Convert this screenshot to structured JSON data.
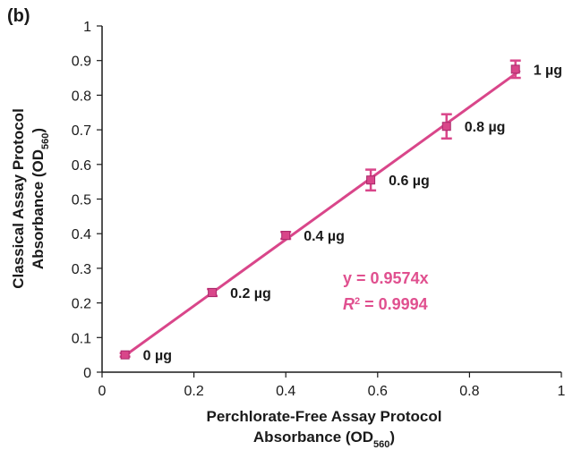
{
  "chart_data": {
    "type": "scatter",
    "panel_label": "(b)",
    "xlabel_line1": "Perchlorate-Free Assay Protocol",
    "xlabel_line2": "Absorbance (OD",
    "xlabel_sub": "560",
    "xlabel_end": ")",
    "ylabel_line1": "Classical Assay Protocol",
    "ylabel_line2": "Absorbance (OD",
    "ylabel_sub": "560",
    "ylabel_end": ")",
    "xlim": [
      0,
      1
    ],
    "ylim": [
      0,
      1
    ],
    "x_ticks": [
      "0",
      "0.2",
      "0.4",
      "0.6",
      "0.8",
      "1"
    ],
    "y_ticks": [
      "0",
      "0.1",
      "0.2",
      "0.3",
      "0.4",
      "0.5",
      "0.6",
      "0.7",
      "0.8",
      "0.9",
      "1"
    ],
    "grid": false,
    "series": [
      {
        "color": "#d9468a",
        "points": [
          {
            "x": 0.05,
            "y": 0.05,
            "err": 0.005,
            "label": "0 µg"
          },
          {
            "x": 0.24,
            "y": 0.23,
            "err": 0.01,
            "label": "0.2 µg"
          },
          {
            "x": 0.4,
            "y": 0.395,
            "err": 0.01,
            "label": "0.4 µg"
          },
          {
            "x": 0.585,
            "y": 0.555,
            "err": 0.03,
            "label": "0.6 µg"
          },
          {
            "x": 0.75,
            "y": 0.71,
            "err": 0.035,
            "label": "0.8 µg"
          },
          {
            "x": 0.9,
            "y": 0.875,
            "err": 0.025,
            "label": "1 µg"
          }
        ]
      }
    ],
    "fit_line": {
      "slope": 0.9574,
      "x_range": [
        0.05,
        0.91
      ],
      "color": "#d9468a"
    },
    "equation": "y = 0.9574x",
    "r2_symbol": "R",
    "r2_sup": "2",
    "r2_value": " = 0.9994"
  }
}
